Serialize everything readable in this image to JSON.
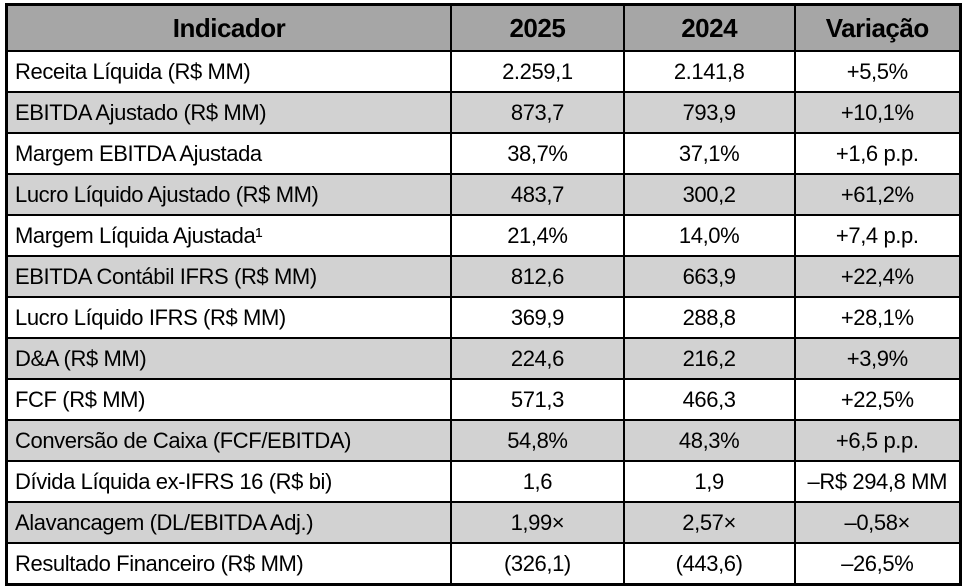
{
  "colors": {
    "header_bg": "#a6a6a6",
    "alt_row_bg": "#d2d2d2",
    "border": "#000000",
    "text": "#000000",
    "page_bg": "#ffffff"
  },
  "table": {
    "headers": [
      "Indicador",
      "2025",
      "2024",
      "Variação"
    ],
    "rows": [
      {
        "indicator": "Receita Líquida (R$ MM)",
        "y2025": "2.259,1",
        "y2024": "2.141,8",
        "variation": "+5,5%"
      },
      {
        "indicator": "EBITDA Ajustado (R$ MM)",
        "y2025": "873,7",
        "y2024": "793,9",
        "variation": "+10,1%"
      },
      {
        "indicator": "Margem EBITDA Ajustada",
        "y2025": "38,7%",
        "y2024": "37,1%",
        "variation": "+1,6 p.p."
      },
      {
        "indicator": "Lucro Líquido Ajustado (R$ MM)",
        "y2025": "483,7",
        "y2024": "300,2",
        "variation": "+61,2%"
      },
      {
        "indicator": "Margem Líquida Ajustada¹",
        "y2025": "21,4%",
        "y2024": "14,0%",
        "variation": "+7,4 p.p."
      },
      {
        "indicator": "EBITDA Contábil IFRS (R$ MM)",
        "y2025": "812,6",
        "y2024": "663,9",
        "variation": "+22,4%"
      },
      {
        "indicator": "Lucro Líquido IFRS (R$ MM)",
        "y2025": "369,9",
        "y2024": "288,8",
        "variation": "+28,1%"
      },
      {
        "indicator": "D&A (R$ MM)",
        "y2025": "224,6",
        "y2024": "216,2",
        "variation": "+3,9%"
      },
      {
        "indicator": "FCF (R$ MM)",
        "y2025": "571,3",
        "y2024": "466,3",
        "variation": "+22,5%"
      },
      {
        "indicator": "Conversão de Caixa (FCF/EBITDA)",
        "y2025": "54,8%",
        "y2024": "48,3%",
        "variation": "+6,5 p.p."
      },
      {
        "indicator": "Dívida Líquida ex-IFRS 16 (R$ bi)",
        "y2025": "1,6",
        "y2024": "1,9",
        "variation": "–R$ 294,8 MM"
      },
      {
        "indicator": "Alavancagem (DL/EBITDA Adj.)",
        "y2025": "1,99×",
        "y2024": "2,57×",
        "variation": "–0,58×"
      },
      {
        "indicator": "Resultado Financeiro (R$ MM)",
        "y2025": "(326,1)",
        "y2024": "(443,6)",
        "variation": "–26,5%"
      }
    ]
  },
  "chart_data": {
    "type": "table",
    "title": "",
    "columns": [
      "Indicador",
      "2025",
      "2024",
      "Variação"
    ],
    "rows": [
      [
        "Receita Líquida (R$ MM)",
        "2.259,1",
        "2.141,8",
        "+5,5%"
      ],
      [
        "EBITDA Ajustado (R$ MM)",
        "873,7",
        "793,9",
        "+10,1%"
      ],
      [
        "Margem EBITDA Ajustada",
        "38,7%",
        "37,1%",
        "+1,6 p.p."
      ],
      [
        "Lucro Líquido Ajustado (R$ MM)",
        "483,7",
        "300,2",
        "+61,2%"
      ],
      [
        "Margem Líquida Ajustada¹",
        "21,4%",
        "14,0%",
        "+7,4 p.p."
      ],
      [
        "EBITDA Contábil IFRS (R$ MM)",
        "812,6",
        "663,9",
        "+22,4%"
      ],
      [
        "Lucro Líquido IFRS (R$ MM)",
        "369,9",
        "288,8",
        "+28,1%"
      ],
      [
        "D&A (R$ MM)",
        "224,6",
        "216,2",
        "+3,9%"
      ],
      [
        "FCF (R$ MM)",
        "571,3",
        "466,3",
        "+22,5%"
      ],
      [
        "Conversão de Caixa (FCF/EBITDA)",
        "54,8%",
        "48,3%",
        "+6,5 p.p."
      ],
      [
        "Dívida Líquida ex-IFRS 16 (R$ bi)",
        "1,6",
        "1,9",
        "–R$ 294,8 MM"
      ],
      [
        "Alavancagem (DL/EBITDA Adj.)",
        "1,99×",
        "2,57×",
        "–0,58×"
      ],
      [
        "Resultado Financeiro (R$ MM)",
        "(326,1)",
        "(443,6)",
        "–26,5%"
      ]
    ],
    "layout": {
      "header_row": true,
      "zebra_striping": true,
      "grid": true
    }
  }
}
